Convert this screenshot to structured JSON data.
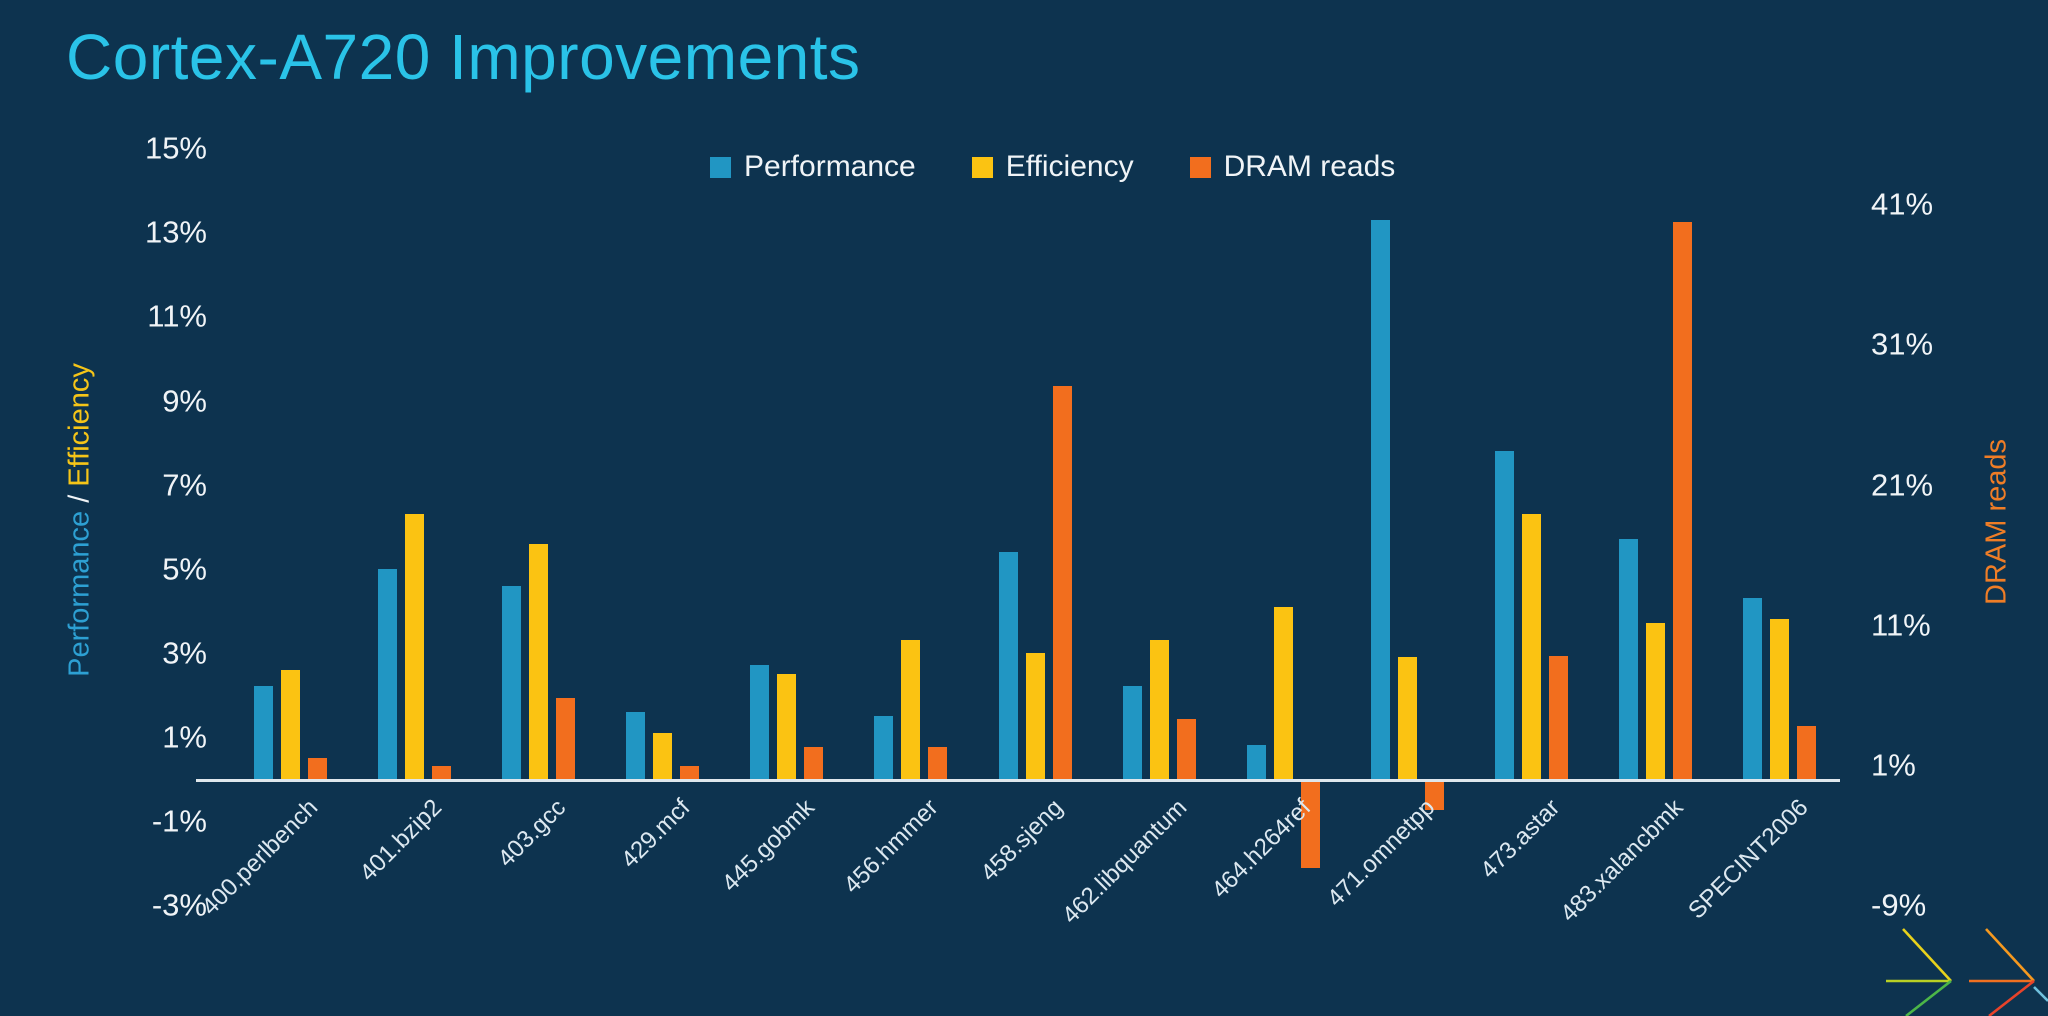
{
  "title": "Cortex-A720 Improvements",
  "colors": {
    "background": "#0d334f",
    "title": "#2ac3e8",
    "performance": "#2196c3",
    "efficiency": "#fbc312",
    "dram": "#f26e1e",
    "axis_text": "#f0f4f7",
    "axis_line": "#dfe7ec",
    "left_title_performance": "#2da0d3",
    "left_title_slash": "#f0f4f7",
    "left_title_efficiency": "#f5c518",
    "right_title": "#ef7d26",
    "arrow_yellow": "#e8d21c",
    "arrow_green": "#4cb648",
    "arrow_orange_light": "#f5991f",
    "arrow_orange_dark": "#e8432a",
    "arrow_blue_tip": "#6fc0dd"
  },
  "legend": {
    "items": [
      {
        "label": "Performance",
        "color_key": "performance"
      },
      {
        "label": "Efficiency",
        "color_key": "efficiency"
      },
      {
        "label": "DRAM reads",
        "color_key": "dram"
      }
    ]
  },
  "left_axis": {
    "title_parts": [
      {
        "text": "Performance",
        "color_key": "left_title_performance"
      },
      {
        "text": " / ",
        "color_key": "left_title_slash"
      },
      {
        "text": "Efficiency",
        "color_key": "left_title_efficiency"
      }
    ],
    "ticks": [
      "15%",
      "13%",
      "11%",
      "9%",
      "7%",
      "5%",
      "3%",
      "1%",
      "-1%",
      "-3%"
    ],
    "tick_values": [
      15,
      13,
      11,
      9,
      7,
      5,
      3,
      1,
      -1,
      -3
    ]
  },
  "right_axis": {
    "title": "DRAM reads",
    "ticks": [
      "41%",
      "31%",
      "21%",
      "11%",
      "1%",
      "-9%"
    ],
    "tick_values": [
      41,
      31,
      21,
      11,
      1,
      -9
    ]
  },
  "chart_data": {
    "type": "bar",
    "title": "Cortex-A720 Improvements",
    "categories": [
      "400.perlbench",
      "401.bzip2",
      "403.gcc",
      "429.mcf",
      "445.gobmk",
      "456.hmmer",
      "458.sjeng",
      "462.libquantum",
      "464.h264ref",
      "471.omnetpp",
      "473.astar",
      "483.xalancbmk",
      "SPECINT2006"
    ],
    "series": [
      {
        "name": "Performance",
        "axis": "left",
        "color_key": "performance",
        "values": [
          2.2,
          5.0,
          4.6,
          1.6,
          2.7,
          1.5,
          5.4,
          2.2,
          0.8,
          13.3,
          7.8,
          5.7,
          4.3
        ]
      },
      {
        "name": "Efficiency",
        "axis": "left",
        "color_key": "efficiency",
        "values": [
          2.6,
          6.3,
          5.6,
          1.1,
          2.5,
          3.3,
          3.0,
          3.3,
          4.1,
          2.9,
          6.3,
          3.7,
          3.8
        ]
      },
      {
        "name": "DRAM reads",
        "axis": "right",
        "color_key": "dram",
        "values": [
          1.5,
          0.9,
          5.8,
          0.9,
          2.3,
          2.3,
          28.0,
          4.3,
          -6.1,
          -2.0,
          8.8,
          39.7,
          3.8
        ]
      }
    ],
    "left_axis_label": "Performance / Efficiency",
    "right_axis_label": "DRAM reads",
    "left_axis_range": [
      -3,
      15
    ],
    "right_axis_range": [
      -9,
      45
    ],
    "grid": false,
    "legend_position": "top-center"
  },
  "decoration": {
    "arrow_icons": [
      "chevron-forward-yellow-green",
      "chevron-forward-orange",
      "chevron-blue-tip"
    ]
  }
}
